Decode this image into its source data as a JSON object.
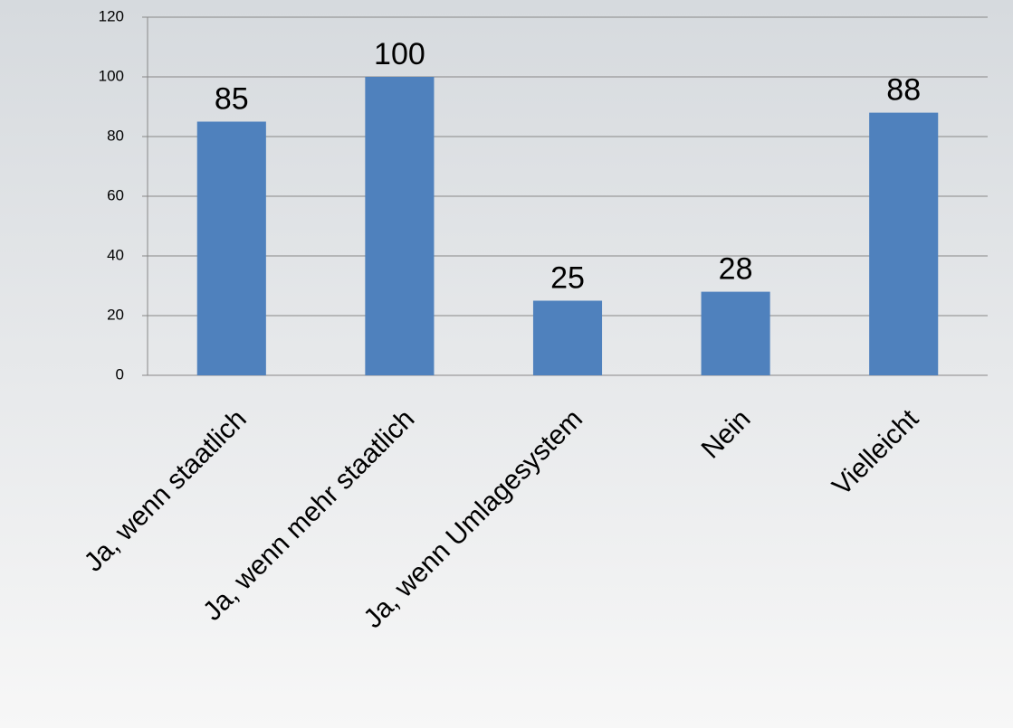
{
  "chart_data": {
    "type": "bar",
    "categories": [
      "Ja, wenn staatlich",
      "Ja, wenn mehr staatlich",
      "Ja, wenn Umlagesystem",
      "Nein",
      "Vielleicht"
    ],
    "values": [
      85,
      100,
      25,
      28,
      88
    ],
    "color": "#4f81bd",
    "ylim": [
      0,
      120
    ],
    "yticks": [
      0,
      20,
      40,
      60,
      80,
      100,
      120
    ],
    "grid": true
  }
}
